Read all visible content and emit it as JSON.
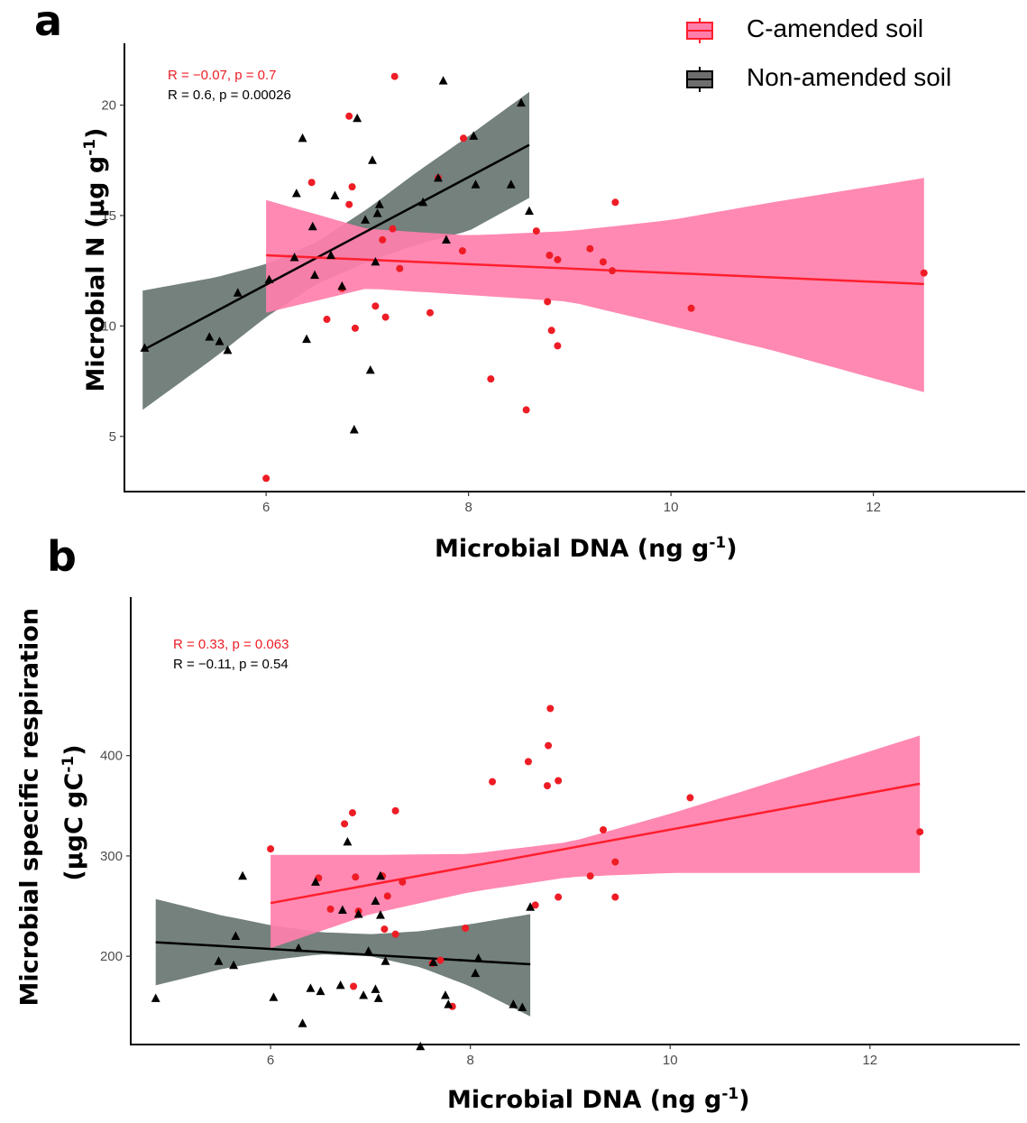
{
  "legend": {
    "items": [
      {
        "label": "C-amended soil",
        "color": "#ff4d8d"
      },
      {
        "label": "Non-amended soil",
        "color": "#6e6e6e"
      }
    ]
  },
  "colors": {
    "amended_line": "#ff1f2e",
    "amended_band": "#ff7fab",
    "amended_point": "#ee1c25",
    "control_line": "#000000",
    "control_band": "#5c6b66",
    "control_point": "#000000"
  },
  "chart_data": [
    {
      "panel": "a",
      "type": "scatter",
      "xlabel": "Microbial DNA (ng g",
      "xlabel_sup": "-1",
      "xlabel_tail": ")",
      "ylabel": "Microbial N (μg g",
      "ylabel_sup": "-1",
      "ylabel_tail": ")",
      "xlim": [
        4.6,
        13.5
      ],
      "ylim": [
        2.5,
        22.8
      ],
      "xticks": [
        "6",
        "8",
        "10",
        "12"
      ],
      "xtick_values": [
        6,
        8,
        10,
        12
      ],
      "yticks": [
        "5",
        "10",
        "15",
        "20"
      ],
      "ytick_values": [
        5,
        10,
        15,
        20
      ],
      "stats": [
        {
          "R": "R = −0.07, ",
          "p": "p = 0.7",
          "series": "C-amended soil"
        },
        {
          "R": "R = 0.6, ",
          "p": "p = 0.00026",
          "series": "Non-amended soil"
        }
      ],
      "series": [
        {
          "name": "C-amended soil",
          "marker": "circle",
          "fit": {
            "x": [
              6.0,
              12.5
            ],
            "y": [
              13.2,
              11.9
            ]
          },
          "band": {
            "x": [
              6.0,
              7.0,
              8.0,
              9.0,
              10.0,
              11.0,
              12.5
            ],
            "upper": [
              15.7,
              14.4,
              14.1,
              14.3,
              14.8,
              15.6,
              16.7
            ],
            "lower": [
              10.6,
              11.7,
              11.4,
              11.1,
              10.0,
              8.9,
              7.0
            ]
          },
          "points": [
            [
              6.0,
              3.1
            ],
            [
              6.45,
              16.5
            ],
            [
              6.6,
              10.3
            ],
            [
              6.75,
              11.7
            ],
            [
              6.82,
              19.5
            ],
            [
              6.85,
              16.3
            ],
            [
              6.82,
              15.5
            ],
            [
              6.88,
              9.9
            ],
            [
              7.08,
              10.9
            ],
            [
              7.15,
              13.9
            ],
            [
              7.18,
              10.4
            ],
            [
              7.25,
              14.4
            ],
            [
              7.27,
              21.3
            ],
            [
              7.32,
              12.6
            ],
            [
              7.62,
              10.6
            ],
            [
              7.7,
              16.7
            ],
            [
              7.95,
              18.5
            ],
            [
              7.94,
              13.4
            ],
            [
              8.22,
              7.6
            ],
            [
              8.57,
              6.2
            ],
            [
              8.67,
              14.3
            ],
            [
              8.78,
              11.1
            ],
            [
              8.8,
              13.2
            ],
            [
              8.82,
              9.8
            ],
            [
              8.88,
              13.0
            ],
            [
              8.88,
              9.1
            ],
            [
              9.2,
              13.5
            ],
            [
              9.33,
              12.9
            ],
            [
              9.42,
              12.5
            ],
            [
              9.45,
              15.6
            ],
            [
              10.2,
              10.8
            ],
            [
              12.5,
              12.4
            ]
          ]
        },
        {
          "name": "Non-amended soil",
          "marker": "triangle",
          "fit": {
            "x": [
              4.78,
              8.6
            ],
            "y": [
              8.9,
              18.2
            ]
          },
          "band": {
            "x": [
              4.78,
              5.5,
              6.0,
              6.5,
              7.0,
              7.5,
              8.0,
              8.6
            ],
            "upper": [
              11.6,
              12.2,
              12.8,
              13.8,
              15.3,
              17.0,
              18.6,
              20.6
            ],
            "lower": [
              6.2,
              8.6,
              10.4,
              11.9,
              12.9,
              13.7,
              14.3,
              15.8
            ]
          },
          "points": [
            [
              4.8,
              9.0
            ],
            [
              5.44,
              9.5
            ],
            [
              5.54,
              9.3
            ],
            [
              5.62,
              8.9
            ],
            [
              5.72,
              11.5
            ],
            [
              6.03,
              12.1
            ],
            [
              6.28,
              13.1
            ],
            [
              6.3,
              16.0
            ],
            [
              6.36,
              18.5
            ],
            [
              6.4,
              9.4
            ],
            [
              6.46,
              14.5
            ],
            [
              6.48,
              12.3
            ],
            [
              6.64,
              13.2
            ],
            [
              6.68,
              15.9
            ],
            [
              6.75,
              11.8
            ],
            [
              6.87,
              5.3
            ],
            [
              6.9,
              19.4
            ],
            [
              6.98,
              14.8
            ],
            [
              7.03,
              8.0
            ],
            [
              7.05,
              17.5
            ],
            [
              7.08,
              12.9
            ],
            [
              7.1,
              15.1
            ],
            [
              7.12,
              15.5
            ],
            [
              7.55,
              15.6
            ],
            [
              7.7,
              16.7
            ],
            [
              7.75,
              21.1
            ],
            [
              7.78,
              13.9
            ],
            [
              8.05,
              18.6
            ],
            [
              8.07,
              16.4
            ],
            [
              8.42,
              16.4
            ],
            [
              8.52,
              20.1
            ],
            [
              8.6,
              15.2
            ]
          ]
        }
      ]
    },
    {
      "panel": "b",
      "type": "scatter",
      "xlabel": "Microbial DNA (ng g",
      "xlabel_sup": "-1",
      "xlabel_tail": ")",
      "ylabel": "Microbial specific respiration",
      "ylabel2": "(μgC gC",
      "ylabel2_sup": "-1",
      "ylabel2_tail": ")",
      "xlim": [
        4.6,
        13.5
      ],
      "ylim": [
        112,
        558
      ],
      "xticks": [
        "6",
        "8",
        "10",
        "12"
      ],
      "xtick_values": [
        6,
        8,
        10,
        12
      ],
      "yticks": [
        "200",
        "300",
        "400"
      ],
      "ytick_values": [
        200,
        300,
        400
      ],
      "stats": [
        {
          "R": "R = 0.33, ",
          "p": "p = 0.063",
          "series": "C-amended soil"
        },
        {
          "R": "R = −0.11, ",
          "p": "p = 0.54",
          "series": "Non-amended soil"
        }
      ],
      "series": [
        {
          "name": "C-amended soil",
          "marker": "circle",
          "fit": {
            "x": [
              6.0,
              12.5
            ],
            "y": [
              253,
              372
            ]
          },
          "band": {
            "x": [
              6.0,
              7.0,
              8.0,
              9.0,
              10.0,
              11.0,
              12.5
            ],
            "upper": [
              301,
              301,
              302,
              314,
              342,
              373,
              420
            ],
            "lower": [
              208,
              242,
              264,
              279,
              283,
              283,
              283
            ]
          },
          "points": [
            [
              6.0,
              307
            ],
            [
              6.48,
              278
            ],
            [
              6.6,
              247
            ],
            [
              6.74,
              332
            ],
            [
              6.82,
              343
            ],
            [
              6.85,
              279
            ],
            [
              6.88,
              245
            ],
            [
              7.14,
              227
            ],
            [
              7.17,
              260
            ],
            [
              7.25,
              222
            ],
            [
              7.25,
              345
            ],
            [
              7.32,
              274
            ],
            [
              7.62,
              193
            ],
            [
              7.7,
              196
            ],
            [
              7.82,
              150
            ],
            [
              7.95,
              228
            ],
            [
              8.22,
              374
            ],
            [
              8.58,
              394
            ],
            [
              8.65,
              251
            ],
            [
              8.77,
              370
            ],
            [
              8.78,
              410
            ],
            [
              8.8,
              447
            ],
            [
              8.88,
              375
            ],
            [
              8.88,
              259
            ],
            [
              9.2,
              280
            ],
            [
              9.33,
              326
            ],
            [
              9.45,
              294
            ],
            [
              9.45,
              259
            ],
            [
              10.2,
              358
            ],
            [
              12.5,
              324
            ],
            [
              6.83,
              170
            ],
            [
              7.12,
              280
            ]
          ]
        },
        {
          "name": "Non-amended soil",
          "marker": "triangle",
          "fit": {
            "x": [
              4.85,
              8.6
            ],
            "y": [
              214,
              192
            ]
          },
          "band": {
            "x": [
              4.85,
              5.5,
              6.0,
              6.5,
              7.0,
              7.5,
              8.0,
              8.6
            ],
            "upper": [
              257,
              241,
              231,
              224,
              222,
              225,
              232,
              242
            ],
            "lower": [
              171,
              187,
              196,
              202,
              200,
              189,
              170,
              140
            ]
          },
          "points": [
            [
              4.85,
              158
            ],
            [
              5.48,
              195
            ],
            [
              5.63,
              191
            ],
            [
              5.72,
              280
            ],
            [
              5.65,
              220
            ],
            [
              6.03,
              159
            ],
            [
              6.28,
              208
            ],
            [
              6.32,
              133
            ],
            [
              6.4,
              168
            ],
            [
              6.45,
              274
            ],
            [
              6.5,
              165
            ],
            [
              6.7,
              171
            ],
            [
              6.72,
              246
            ],
            [
              6.77,
              314
            ],
            [
              6.88,
              242
            ],
            [
              6.93,
              161
            ],
            [
              6.98,
              205
            ],
            [
              7.05,
              255
            ],
            [
              7.05,
              167
            ],
            [
              7.08,
              158
            ],
            [
              7.1,
              241
            ],
            [
              7.1,
              280
            ],
            [
              7.15,
              195
            ],
            [
              7.63,
              194
            ],
            [
              7.75,
              161
            ],
            [
              7.78,
              152
            ],
            [
              8.05,
              183
            ],
            [
              8.08,
              198
            ],
            [
              8.43,
              152
            ],
            [
              8.52,
              149
            ],
            [
              8.6,
              249
            ],
            [
              7.5,
              110
            ]
          ]
        }
      ]
    }
  ]
}
